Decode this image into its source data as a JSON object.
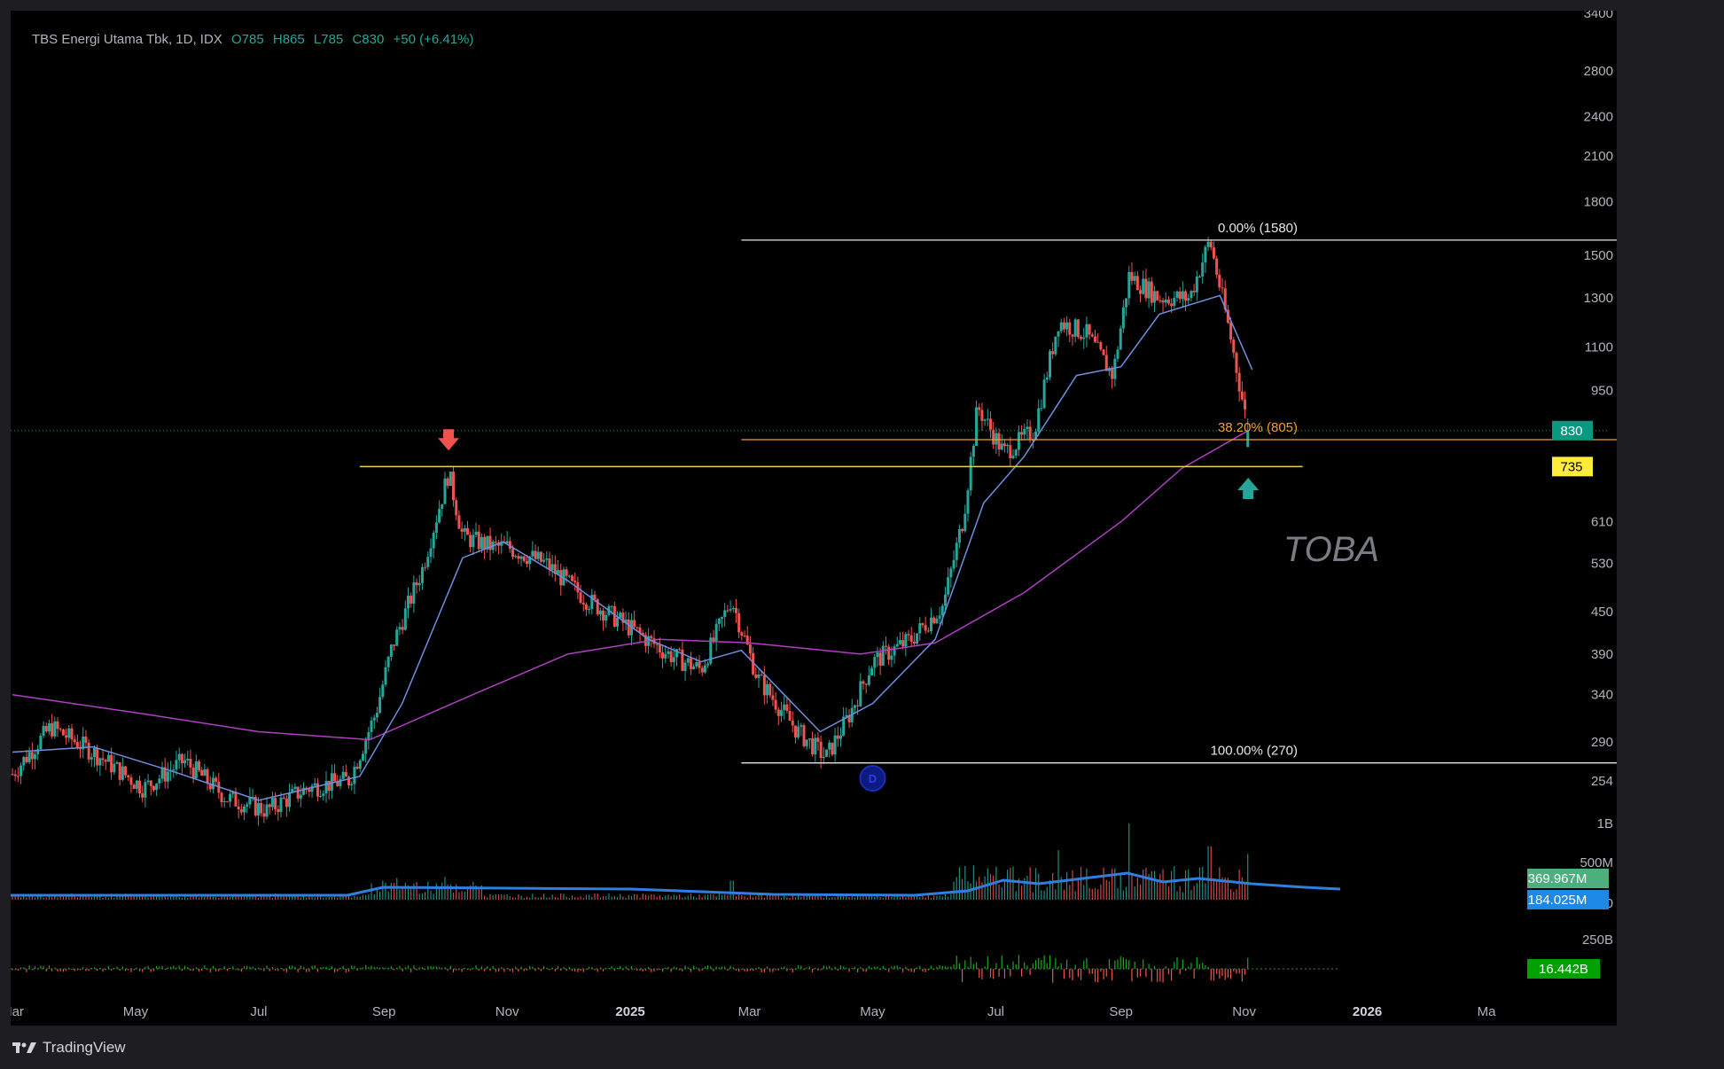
{
  "legend": {
    "symbol_name": "TBS Energi Utama Tbk, 1D, IDX",
    "open": "O785",
    "high": "H865",
    "low": "L785",
    "close": "C830",
    "change": "+50 (+6.41%)"
  },
  "watermark": "TOBA",
  "footer": {
    "brand": "TradingView",
    "logo_icon": "tradingview-logo-icon"
  },
  "colors": {
    "up": "#26a69a",
    "down": "#ef5350",
    "ma_fast": "#6e8fe0",
    "ma_slow": "#b03fc4",
    "support_line": "#e8d44d",
    "fib_orange": "#f0a030",
    "volume_ma": "#2f7fe0",
    "badge_price": "#089981",
    "badge_level": "#ffeb3b",
    "badge_vol_green": "#4caf7d",
    "badge_vol_blue": "#1e88e5",
    "badge_value": "#00a000"
  },
  "chart_data": {
    "type": "candlestick",
    "scale": "log",
    "ylim": [
      240,
      3400
    ],
    "y_ticks": [
      3400,
      2800,
      2400,
      2100,
      1800,
      1500,
      1300,
      1100,
      950,
      830,
      710,
      610,
      530,
      450,
      390,
      340,
      290,
      254
    ],
    "x_tick_labels": [
      "Mar",
      "May",
      "Jul",
      "Sep",
      "Nov",
      "2025",
      "Mar",
      "May",
      "Jul",
      "Sep",
      "Nov",
      "2026",
      "Ma"
    ],
    "x_tick_dates": [
      "2024-03-01",
      "2024-05-01",
      "2024-07-01",
      "2024-09-01",
      "2024-11-01",
      "2025-01-01",
      "2025-03-01",
      "2025-05-01",
      "2025-07-01",
      "2025-09-01",
      "2025-11-01",
      "2026-01-01",
      "2026-03-01"
    ],
    "price_path": [
      {
        "date": "2024-03-01",
        "close": 260
      },
      {
        "date": "2024-03-20",
        "close": 305
      },
      {
        "date": "2024-04-10",
        "close": 280
      },
      {
        "date": "2024-05-05",
        "close": 248
      },
      {
        "date": "2024-05-25",
        "close": 272
      },
      {
        "date": "2024-06-15",
        "close": 240
      },
      {
        "date": "2024-07-05",
        "close": 230
      },
      {
        "date": "2024-07-25",
        "close": 248
      },
      {
        "date": "2024-08-15",
        "close": 255
      },
      {
        "date": "2024-08-28",
        "close": 320
      },
      {
        "date": "2024-09-05",
        "close": 400
      },
      {
        "date": "2024-09-20",
        "close": 520
      },
      {
        "date": "2024-10-03",
        "close": 720
      },
      {
        "date": "2024-10-10",
        "close": 580
      },
      {
        "date": "2024-10-25",
        "close": 560
      },
      {
        "date": "2024-11-01",
        "close": 560
      },
      {
        "date": "2024-11-20",
        "close": 530
      },
      {
        "date": "2024-12-10",
        "close": 470
      },
      {
        "date": "2024-12-30",
        "close": 430
      },
      {
        "date": "2025-01-20",
        "close": 390
      },
      {
        "date": "2025-02-05",
        "close": 370
      },
      {
        "date": "2025-02-20",
        "close": 470
      },
      {
        "date": "2025-03-05",
        "close": 360
      },
      {
        "date": "2025-03-25",
        "close": 300
      },
      {
        "date": "2025-04-08",
        "close": 275
      },
      {
        "date": "2025-04-20",
        "close": 320
      },
      {
        "date": "2025-05-01",
        "close": 380
      },
      {
        "date": "2025-05-20",
        "close": 410
      },
      {
        "date": "2025-06-05",
        "close": 460
      },
      {
        "date": "2025-06-15",
        "close": 620
      },
      {
        "date": "2025-06-22",
        "close": 900
      },
      {
        "date": "2025-07-05",
        "close": 770
      },
      {
        "date": "2025-07-20",
        "close": 830
      },
      {
        "date": "2025-08-01",
        "close": 1200
      },
      {
        "date": "2025-08-15",
        "close": 1150
      },
      {
        "date": "2025-08-28",
        "close": 1000
      },
      {
        "date": "2025-09-05",
        "close": 1400
      },
      {
        "date": "2025-09-20",
        "close": 1300
      },
      {
        "date": "2025-10-05",
        "close": 1300
      },
      {
        "date": "2025-10-15",
        "close": 1580
      },
      {
        "date": "2025-10-25",
        "close": 1150
      },
      {
        "date": "2025-11-03",
        "close": 830
      }
    ],
    "ma_fast_label": "",
    "ma_slow_label": "",
    "ma_fast_path": [
      {
        "date": "2024-03-01",
        "value": 280
      },
      {
        "date": "2024-04-10",
        "value": 285
      },
      {
        "date": "2024-05-20",
        "value": 262
      },
      {
        "date": "2024-07-01",
        "value": 238
      },
      {
        "date": "2024-08-20",
        "value": 258
      },
      {
        "date": "2024-09-10",
        "value": 330
      },
      {
        "date": "2024-10-10",
        "value": 540
      },
      {
        "date": "2024-10-30",
        "value": 570
      },
      {
        "date": "2024-12-01",
        "value": 500
      },
      {
        "date": "2025-01-10",
        "value": 410
      },
      {
        "date": "2025-02-05",
        "value": 380
      },
      {
        "date": "2025-02-25",
        "value": 395
      },
      {
        "date": "2025-04-05",
        "value": 300
      },
      {
        "date": "2025-05-01",
        "value": 330
      },
      {
        "date": "2025-06-01",
        "value": 410
      },
      {
        "date": "2025-06-25",
        "value": 650
      },
      {
        "date": "2025-07-15",
        "value": 760
      },
      {
        "date": "2025-08-10",
        "value": 1000
      },
      {
        "date": "2025-09-01",
        "value": 1030
      },
      {
        "date": "2025-09-20",
        "value": 1230
      },
      {
        "date": "2025-10-20",
        "value": 1310
      },
      {
        "date": "2025-11-05",
        "value": 1020
      }
    ],
    "ma_slow_path": [
      {
        "date": "2024-03-01",
        "value": 340
      },
      {
        "date": "2024-05-01",
        "value": 320
      },
      {
        "date": "2024-07-01",
        "value": 300
      },
      {
        "date": "2024-08-25",
        "value": 292
      },
      {
        "date": "2024-10-15",
        "value": 340
      },
      {
        "date": "2024-12-01",
        "value": 390
      },
      {
        "date": "2025-01-15",
        "value": 410
      },
      {
        "date": "2025-03-01",
        "value": 405
      },
      {
        "date": "2025-04-25",
        "value": 390
      },
      {
        "date": "2025-06-01",
        "value": 405
      },
      {
        "date": "2025-07-15",
        "value": 480
      },
      {
        "date": "2025-09-01",
        "value": 610
      },
      {
        "date": "2025-10-01",
        "value": 730
      },
      {
        "date": "2025-11-03",
        "value": 830
      }
    ],
    "horizontal_levels": [
      {
        "name": "resistance-support",
        "value": 735,
        "from": "2024-08-20",
        "to": "2025-11-30",
        "color_key": "support_line"
      }
    ],
    "fibonacci": {
      "from": "2025-02-25",
      "to": "2025-12-15",
      "levels": [
        {
          "ratio_label": "0.00% (1580)",
          "value": 1580,
          "color": "#e6e6e6"
        },
        {
          "ratio_label": "38.20% (805)",
          "value": 805,
          "color": "#f0a030"
        },
        {
          "ratio_label": "100.00% (270)",
          "value": 270,
          "color": "#e6e6e6"
        }
      ]
    },
    "arrows": [
      {
        "direction": "down",
        "date": "2024-10-03",
        "value": 790,
        "color_key": "down"
      },
      {
        "direction": "up",
        "date": "2025-11-03",
        "value": 695,
        "color_key": "up"
      }
    ],
    "event_marker": {
      "date": "2025-05-01",
      "label": "D"
    },
    "price_badges": [
      {
        "text": "830",
        "value": 830,
        "color_key": "badge_price"
      },
      {
        "text": "735",
        "value": 735,
        "color_key": "badge_level",
        "dark_text": true
      }
    ],
    "volume": {
      "axis_ticks": [
        "1B",
        "500M",
        "0"
      ],
      "badges": [
        {
          "text": "369.967M",
          "color_key": "badge_vol_green"
        },
        {
          "text": "184.025M",
          "color_key": "badge_vol_blue"
        }
      ],
      "spikes": [
        {
          "date": "2024-09-05",
          "value": 0.22
        },
        {
          "date": "2024-10-03",
          "value": 0.2
        },
        {
          "date": "2025-02-20",
          "value": 0.25
        },
        {
          "date": "2025-06-20",
          "value": 0.45
        },
        {
          "date": "2025-08-01",
          "value": 0.65
        },
        {
          "date": "2025-09-05",
          "value": 1.0
        },
        {
          "date": "2025-10-15",
          "value": 0.7
        },
        {
          "date": "2025-11-03",
          "value": 0.6
        }
      ]
    },
    "value_panel": {
      "axis_tick": "250B",
      "badge": {
        "text": "16.442B",
        "color_key": "badge_value"
      }
    }
  }
}
